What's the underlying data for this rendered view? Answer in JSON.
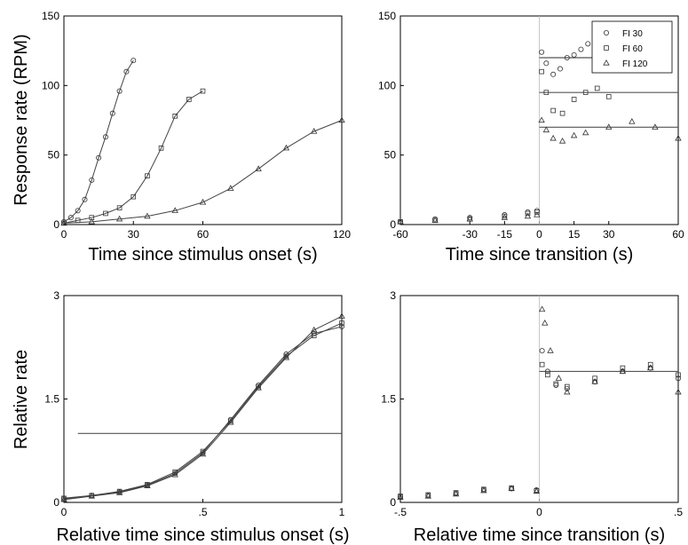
{
  "chart_data": [
    {
      "type": "scatter",
      "title": "",
      "xlabel": "Time since stimulus onset (s)",
      "ylabel": "Response rate (RPM)",
      "xlim": [
        0,
        120
      ],
      "ylim": [
        0,
        150
      ],
      "xticks": [
        0,
        30,
        60,
        120
      ],
      "yticks": [
        0,
        50,
        100,
        150
      ],
      "legend": "none",
      "grid": false,
      "series": [
        {
          "marker": "circle",
          "x": [
            0,
            3,
            6,
            9,
            12,
            15,
            18,
            21,
            24,
            27,
            30
          ],
          "y": [
            2,
            5,
            10,
            18,
            32,
            48,
            63,
            80,
            96,
            110,
            118
          ]
        },
        {
          "marker": "square",
          "x": [
            0,
            6,
            12,
            18,
            24,
            30,
            36,
            42,
            48,
            54,
            60
          ],
          "y": [
            1,
            3,
            5,
            8,
            12,
            20,
            35,
            55,
            78,
            90,
            96
          ]
        },
        {
          "marker": "triangle",
          "x": [
            0,
            12,
            24,
            36,
            48,
            60,
            72,
            84,
            96,
            108,
            120
          ],
          "y": [
            1,
            2,
            4,
            6,
            10,
            16,
            26,
            40,
            55,
            67,
            75
          ]
        }
      ]
    },
    {
      "type": "scatter",
      "title": "",
      "xlabel": "Time since transition (s)",
      "ylabel": "",
      "xlim": [
        -60,
        60
      ],
      "ylim": [
        0,
        150
      ],
      "xticks": [
        -60,
        -30,
        -15,
        0,
        15,
        30,
        60
      ],
      "yticks": [
        0,
        50,
        100,
        150
      ],
      "legend": "top-right",
      "grid": false,
      "series": [
        {
          "name": "FI 30",
          "marker": "circle",
          "x": [
            -60,
            -45,
            -30,
            -15,
            -5,
            -1,
            1,
            3,
            6,
            9,
            12,
            15,
            18,
            21,
            24,
            27,
            30
          ],
          "y": [
            2,
            4,
            5,
            7,
            9,
            10,
            124,
            116,
            108,
            112,
            120,
            122,
            126,
            130,
            126,
            120,
            117
          ]
        },
        {
          "name": "FI 60",
          "marker": "square",
          "x": [
            -60,
            -45,
            -30,
            -15,
            -5,
            -1,
            1,
            3,
            6,
            10,
            15,
            20,
            25,
            30
          ],
          "y": [
            2,
            3,
            4,
            6,
            8,
            9,
            110,
            95,
            82,
            80,
            90,
            95,
            98,
            92
          ]
        },
        {
          "name": "FI 120",
          "marker": "triangle",
          "x": [
            -60,
            -45,
            -30,
            -15,
            -5,
            -1,
            1,
            3,
            6,
            10,
            15,
            20,
            30,
            40,
            50,
            60
          ],
          "y": [
            2,
            3,
            4,
            5,
            6,
            7,
            75,
            68,
            62,
            60,
            64,
            66,
            70,
            74,
            70,
            62
          ]
        }
      ],
      "reference_lines": [
        {
          "y": 120,
          "x_from": 0,
          "x_to": 30
        },
        {
          "y": 95,
          "x_from": 0,
          "x_to": 60
        },
        {
          "y": 70,
          "x_from": 0,
          "x_to": 60
        }
      ]
    },
    {
      "type": "scatter",
      "title": "",
      "xlabel": "Relative time since stimulus onset (s)",
      "ylabel": "Relative rate",
      "xlim": [
        0,
        1
      ],
      "ylim": [
        0,
        3
      ],
      "xticks": [
        0,
        0.5,
        1
      ],
      "yticks": [
        0,
        1.5,
        3
      ],
      "legend": "none",
      "grid": false,
      "series": [
        {
          "marker": "circle",
          "x": [
            0,
            0.1,
            0.2,
            0.3,
            0.4,
            0.5,
            0.6,
            0.7,
            0.8,
            0.9,
            1.0
          ],
          "y": [
            0.05,
            0.1,
            0.15,
            0.25,
            0.42,
            0.72,
            1.2,
            1.7,
            2.15,
            2.45,
            2.55
          ]
        },
        {
          "marker": "square",
          "x": [
            0,
            0.1,
            0.2,
            0.3,
            0.4,
            0.5,
            0.6,
            0.7,
            0.8,
            0.9,
            1.0
          ],
          "y": [
            0.06,
            0.1,
            0.16,
            0.26,
            0.44,
            0.74,
            1.18,
            1.68,
            2.12,
            2.42,
            2.6
          ]
        },
        {
          "marker": "triangle",
          "x": [
            0,
            0.1,
            0.2,
            0.3,
            0.4,
            0.5,
            0.6,
            0.7,
            0.8,
            0.9,
            1.0
          ],
          "y": [
            0.04,
            0.09,
            0.14,
            0.24,
            0.4,
            0.7,
            1.16,
            1.66,
            2.1,
            2.5,
            2.7
          ]
        }
      ],
      "reference_lines": [
        {
          "y": 1.0,
          "x_from": 0.05,
          "x_to": 1.0
        }
      ]
    },
    {
      "type": "scatter",
      "title": "",
      "xlabel": "Relative time since transition (s)",
      "ylabel": "",
      "xlim": [
        -0.5,
        0.5
      ],
      "ylim": [
        0,
        3
      ],
      "xticks": [
        -0.5,
        0,
        0.5
      ],
      "yticks": [
        0,
        1.5,
        3
      ],
      "legend": "none",
      "grid": false,
      "series": [
        {
          "marker": "circle",
          "x": [
            -0.5,
            -0.4,
            -0.3,
            -0.2,
            -0.1,
            -0.01,
            0.01,
            0.03,
            0.06,
            0.1,
            0.2,
            0.3,
            0.4,
            0.5
          ],
          "y": [
            0.08,
            0.1,
            0.13,
            0.18,
            0.2,
            0.18,
            2.2,
            1.9,
            1.7,
            1.65,
            1.75,
            1.9,
            1.95,
            1.8
          ]
        },
        {
          "marker": "square",
          "x": [
            -0.5,
            -0.4,
            -0.3,
            -0.2,
            -0.1,
            -0.01,
            0.01,
            0.03,
            0.06,
            0.1,
            0.2,
            0.3,
            0.4,
            0.5
          ],
          "y": [
            0.09,
            0.11,
            0.14,
            0.19,
            0.21,
            0.17,
            2.0,
            1.85,
            1.72,
            1.68,
            1.8,
            1.95,
            2.0,
            1.85
          ]
        },
        {
          "marker": "triangle",
          "x": [
            -0.5,
            -0.4,
            -0.3,
            -0.2,
            -0.1,
            -0.01,
            0.01,
            0.02,
            0.04,
            0.07,
            0.1,
            0.2,
            0.3,
            0.4,
            0.5
          ],
          "y": [
            0.07,
            0.09,
            0.12,
            0.17,
            0.2,
            0.16,
            2.8,
            2.6,
            2.2,
            1.8,
            1.6,
            1.75,
            1.9,
            1.95,
            1.6
          ]
        }
      ],
      "reference_lines": [
        {
          "y": 1.9,
          "x_from": 0,
          "x_to": 0.5
        }
      ]
    }
  ],
  "legend": {
    "entries": [
      {
        "label": "FI 30",
        "marker": "circle"
      },
      {
        "label": "FI 60",
        "marker": "square"
      },
      {
        "label": "FI 120",
        "marker": "triangle"
      }
    ]
  },
  "colors": {
    "marker_stroke": "#333333",
    "reference_line": "#555555"
  }
}
